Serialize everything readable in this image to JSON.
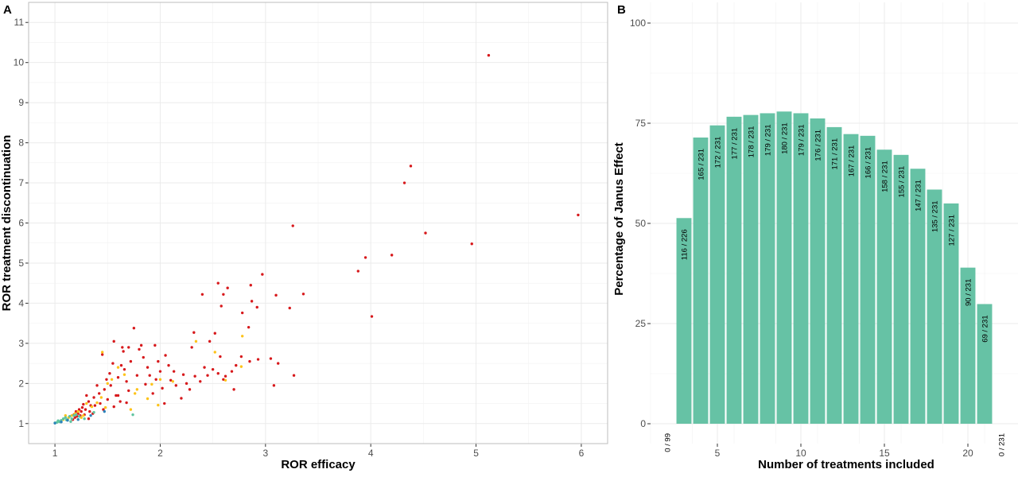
{
  "chart_data": [
    {
      "panel": "A",
      "type": "scatter",
      "title": "",
      "xlabel": "ROR efficacy",
      "ylabel": "ROR treatment discontinuation",
      "xlim": [
        0.75,
        6.25
      ],
      "ylim": [
        0.5,
        11.5
      ],
      "xticks": [
        1,
        2,
        3,
        4,
        5,
        6
      ],
      "yticks": [
        1,
        2,
        3,
        4,
        5,
        6,
        7,
        8,
        9,
        10,
        11
      ],
      "grid": true,
      "legend": "none",
      "series": [
        {
          "color": "#d7191c",
          "points": [
            [
              5.12,
              10.18
            ],
            [
              5.97,
              6.2
            ],
            [
              4.38,
              7.42
            ],
            [
              4.32,
              7.0
            ],
            [
              4.52,
              5.75
            ],
            [
              4.96,
              5.48
            ],
            [
              3.26,
              5.93
            ],
            [
              4.2,
              5.2
            ],
            [
              3.95,
              5.14
            ],
            [
              3.88,
              4.8
            ],
            [
              4.01,
              3.67
            ],
            [
              3.36,
              4.23
            ],
            [
              3.23,
              3.88
            ],
            [
              3.1,
              4.2
            ],
            [
              2.97,
              4.72
            ],
            [
              2.92,
              3.9
            ],
            [
              2.87,
              4.05
            ],
            [
              2.78,
              3.76
            ],
            [
              2.6,
              4.22
            ],
            [
              2.64,
              4.38
            ],
            [
              2.55,
              4.5
            ],
            [
              2.58,
              3.93
            ],
            [
              2.4,
              4.22
            ],
            [
              2.32,
              3.27
            ],
            [
              2.52,
              3.25
            ],
            [
              2.84,
              3.4
            ],
            [
              2.86,
              4.45
            ],
            [
              3.05,
              2.62
            ],
            [
              3.12,
              2.5
            ],
            [
              3.08,
              1.95
            ],
            [
              3.27,
              2.2
            ],
            [
              2.93,
              2.6
            ],
            [
              2.85,
              2.55
            ],
            [
              2.77,
              2.67
            ],
            [
              2.72,
              2.45
            ],
            [
              2.68,
              2.3
            ],
            [
              2.57,
              2.67
            ],
            [
              2.55,
              2.25
            ],
            [
              2.62,
              2.18
            ],
            [
              2.5,
              2.35
            ],
            [
              2.45,
              2.2
            ],
            [
              2.42,
              2.4
            ],
            [
              2.38,
              2.05
            ],
            [
              2.33,
              2.18
            ],
            [
              2.28,
              1.85
            ],
            [
              2.25,
              2.0
            ],
            [
              2.22,
              2.22
            ],
            [
              2.2,
              1.63
            ],
            [
              2.15,
              1.95
            ],
            [
              2.13,
              2.3
            ],
            [
              2.1,
              2.08
            ],
            [
              2.08,
              2.45
            ],
            [
              2.05,
              2.7
            ],
            [
              2.02,
              1.88
            ],
            [
              2.0,
              2.3
            ],
            [
              1.98,
              2.55
            ],
            [
              1.96,
              2.1
            ],
            [
              1.95,
              2.95
            ],
            [
              1.93,
              1.75
            ],
            [
              1.9,
              2.2
            ],
            [
              1.88,
              2.4
            ],
            [
              1.86,
              1.98
            ],
            [
              1.84,
              2.65
            ],
            [
              1.8,
              2.85
            ],
            [
              1.78,
              2.2
            ],
            [
              1.75,
              3.38
            ],
            [
              1.72,
              2.55
            ],
            [
              1.7,
              1.82
            ],
            [
              1.68,
              2.05
            ],
            [
              1.66,
              2.35
            ],
            [
              1.65,
              2.8
            ],
            [
              1.63,
              2.45
            ],
            [
              1.62,
              1.55
            ],
            [
              1.6,
              2.15
            ],
            [
              1.58,
              1.7
            ],
            [
              1.56,
              1.42
            ],
            [
              1.55,
              2.5
            ],
            [
              1.53,
              1.95
            ],
            [
              1.52,
              2.25
            ],
            [
              1.5,
              1.6
            ],
            [
              1.49,
              2.1
            ],
            [
              1.47,
              1.85
            ],
            [
              1.46,
              1.35
            ],
            [
              1.45,
              2.72
            ],
            [
              1.43,
              1.5
            ],
            [
              1.42,
              1.75
            ],
            [
              1.4,
              1.95
            ],
            [
              1.38,
              1.45
            ],
            [
              1.37,
              1.65
            ],
            [
              1.36,
              1.25
            ],
            [
              1.34,
              1.45
            ],
            [
              1.33,
              1.3
            ],
            [
              1.32,
              1.55
            ],
            [
              1.3,
              1.7
            ],
            [
              1.29,
              1.35
            ],
            [
              1.28,
              1.22
            ],
            [
              1.27,
              1.48
            ],
            [
              1.26,
              1.4
            ],
            [
              1.25,
              1.3
            ],
            [
              1.24,
              1.2
            ],
            [
              1.23,
              1.35
            ],
            [
              1.22,
              1.25
            ],
            [
              1.21,
              1.18
            ],
            [
              1.2,
              1.3
            ],
            [
              1.19,
              1.15
            ],
            [
              1.18,
              1.22
            ],
            [
              1.17,
              1.1
            ],
            [
              1.32,
              1.12
            ],
            [
              1.56,
              3.05
            ],
            [
              1.7,
              2.9
            ],
            [
              1.82,
              2.95
            ],
            [
              2.3,
              2.9
            ],
            [
              1.6,
              1.7
            ],
            [
              2.6,
              2.1
            ],
            [
              2.7,
              1.85
            ],
            [
              2.04,
              1.5
            ],
            [
              1.68,
              1.52
            ],
            [
              2.47,
              3.05
            ],
            [
              1.64,
              2.9
            ]
          ]
        },
        {
          "color": "#fdc31a",
          "points": [
            [
              1.45,
              2.78
            ],
            [
              2.52,
              2.78
            ],
            [
              2.77,
              2.42
            ],
            [
              2.78,
              3.18
            ],
            [
              2.34,
              3.05
            ],
            [
              2.62,
              2.08
            ],
            [
              1.98,
              1.46
            ],
            [
              1.76,
              1.75
            ],
            [
              1.72,
              1.35
            ],
            [
              1.6,
              2.4
            ],
            [
              1.5,
              2.0
            ],
            [
              1.48,
              1.4
            ],
            [
              1.44,
              1.65
            ],
            [
              1.4,
              1.52
            ],
            [
              1.35,
              1.42
            ],
            [
              1.3,
              1.5
            ],
            [
              1.27,
              1.2
            ],
            [
              1.25,
              1.15
            ],
            [
              1.22,
              1.3
            ],
            [
              1.19,
              1.25
            ],
            [
              1.16,
              1.2
            ],
            [
              1.13,
              1.15
            ],
            [
              1.1,
              1.2
            ],
            [
              1.08,
              1.1
            ],
            [
              1.88,
              1.62
            ],
            [
              2.12,
              2.05
            ],
            [
              1.54,
              2.1
            ],
            [
              1.66,
              2.22
            ],
            [
              1.78,
              1.85
            ],
            [
              2.0,
              2.1
            ],
            [
              1.92,
              1.98
            ]
          ]
        },
        {
          "color": "#5fc4a0",
          "points": [
            [
              1.0,
              1.02
            ],
            [
              1.02,
              1.03
            ],
            [
              1.04,
              1.05
            ],
            [
              1.06,
              1.08
            ],
            [
              1.08,
              1.12
            ],
            [
              1.1,
              1.15
            ],
            [
              1.12,
              1.1
            ],
            [
              1.14,
              1.18
            ],
            [
              1.16,
              1.12
            ],
            [
              1.18,
              1.2
            ],
            [
              1.2,
              1.22
            ],
            [
              1.28,
              1.12
            ],
            [
              1.37,
              1.28
            ],
            [
              1.74,
              1.22
            ],
            [
              1.03,
              1.07
            ],
            [
              1.05,
              1.04
            ],
            [
              1.11,
              1.09
            ],
            [
              1.23,
              1.18
            ],
            [
              1.15,
              1.05
            ]
          ]
        },
        {
          "color": "#2b83ba",
          "points": [
            [
              1.0,
              1.01
            ],
            [
              1.06,
              1.04
            ],
            [
              1.12,
              1.08
            ],
            [
              1.22,
              1.1
            ],
            [
              1.34,
              1.2
            ],
            [
              1.47,
              1.3
            ]
          ]
        }
      ]
    },
    {
      "panel": "B",
      "type": "bar",
      "title": "",
      "xlabel": "Number of treatments included",
      "ylabel": "Percentage of Janus Effect",
      "xlim": [
        1,
        23
      ],
      "ylim": [
        0,
        100
      ],
      "xticks": [
        5,
        10,
        15,
        20
      ],
      "yticks": [
        0,
        25,
        50,
        75,
        100
      ],
      "grid": true,
      "legend": "none",
      "bar_color": "#66c2a5",
      "categories": [
        2,
        3,
        4,
        5,
        6,
        7,
        8,
        9,
        10,
        11,
        12,
        13,
        14,
        15,
        16,
        17,
        18,
        19,
        20,
        21,
        22
      ],
      "values": [
        0,
        51.33,
        71.43,
        74.46,
        76.62,
        77.06,
        77.49,
        77.92,
        77.49,
        76.19,
        74.03,
        72.29,
        71.86,
        68.4,
        67.1,
        63.64,
        58.44,
        54.98,
        38.96,
        29.87,
        0
      ],
      "data_labels": [
        "0 / 99",
        "116 / 226",
        "165 / 231",
        "172 / 231",
        "177 / 231",
        "178 / 231",
        "179 / 231",
        "180 / 231",
        "179 / 231",
        "176 / 231",
        "171 / 231",
        "167 / 231",
        "166 / 231",
        "158 / 231",
        "155 / 231",
        "147 / 231",
        "135 / 231",
        "127 / 231",
        "90 / 231",
        "69 / 231",
        "0 / 231"
      ]
    }
  ],
  "panel_labels": {
    "a": "A",
    "b": "B"
  }
}
